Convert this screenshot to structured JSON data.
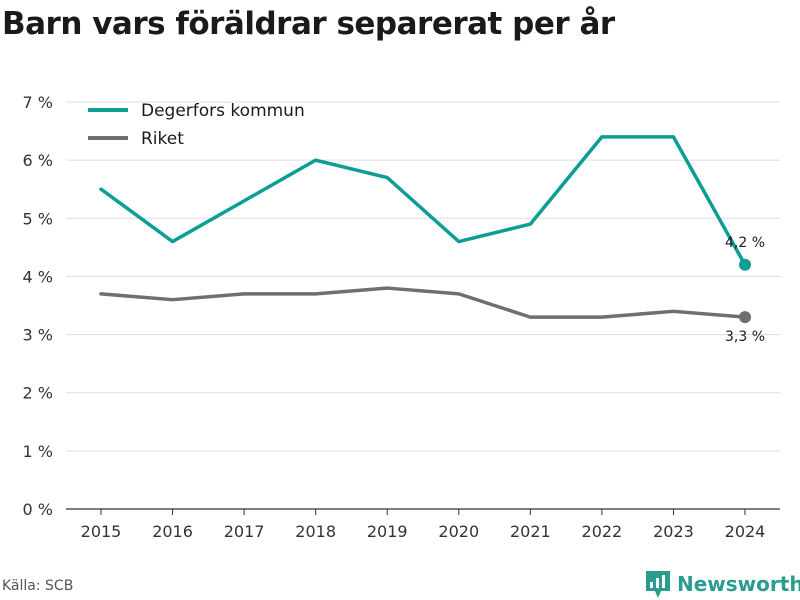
{
  "title": "Barn vars föräldrar separerat per år",
  "source": "Källa: SCB",
  "brand": "Newsworthy",
  "colors": {
    "degerfors": "#0c9e94",
    "riket": "#6e6e75",
    "grid": "#dddddd",
    "brand": "#2a9d8f"
  },
  "chart_data": {
    "type": "line",
    "title": "Barn vars föräldrar separerat per år",
    "x": [
      "2015",
      "2016",
      "2017",
      "2018",
      "2019",
      "2020",
      "2021",
      "2022",
      "2023",
      "2024"
    ],
    "ylim": [
      0,
      7
    ],
    "yticks": [
      "0 %",
      "1 %",
      "2 %",
      "3 %",
      "4 %",
      "5 %",
      "6 %",
      "7 %"
    ],
    "grid": true,
    "legend": "top-left",
    "series": [
      {
        "name": "Degerfors kommun",
        "values": [
          5.5,
          4.6,
          5.3,
          6.0,
          5.7,
          4.6,
          4.9,
          6.4,
          6.4,
          4.2
        ],
        "end_label": "4,2 %"
      },
      {
        "name": "Riket",
        "values": [
          3.7,
          3.6,
          3.7,
          3.7,
          3.8,
          3.7,
          3.3,
          3.3,
          3.4,
          3.3
        ],
        "end_label": "3,3 %"
      }
    ]
  }
}
